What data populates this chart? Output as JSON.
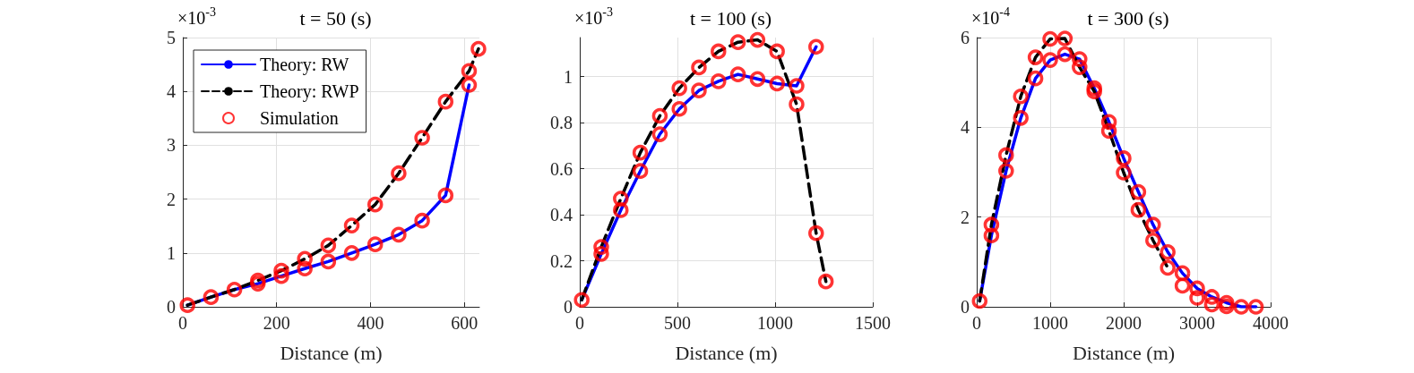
{
  "chart_data": [
    {
      "type": "line",
      "title": "t = 50 (s)",
      "xlabel": "Distance (m)",
      "annotations": [
        "×10$^{-3}$"
      ],
      "xlim": [
        0,
        632
      ],
      "xticks": [
        0,
        200,
        400,
        600
      ],
      "ylim": [
        0,
        5
      ],
      "yticks": [
        0,
        1,
        2,
        3,
        4,
        5
      ],
      "grid": true,
      "legend": "top left",
      "series": [
        {
          "name": "Theory: RW",
          "type": "line",
          "color": "#0000ff",
          "line_style": "solid",
          "marker": "none",
          "x": [
            10,
            60,
            110,
            160,
            210,
            260,
            310,
            360,
            410,
            460,
            510,
            560,
            610
          ],
          "values": [
            0.03,
            0.18,
            0.32,
            0.43,
            0.57,
            0.71,
            0.84,
            1.0,
            1.16,
            1.34,
            1.6,
            2.07,
            4.12
          ]
        },
        {
          "name": "Theory: RWP",
          "type": "line",
          "color": "#000000",
          "line_style": "dashed",
          "marker": "none",
          "x": [
            10,
            60,
            110,
            160,
            210,
            260,
            310,
            360,
            410,
            460,
            510,
            560,
            610,
            630
          ],
          "values": [
            0.03,
            0.18,
            0.32,
            0.49,
            0.67,
            0.89,
            1.14,
            1.51,
            1.9,
            2.48,
            3.14,
            3.81,
            4.38,
            4.79
          ]
        },
        {
          "name": "Simulation",
          "type": "scatter",
          "color": "#ff0000",
          "marker": "circle",
          "x": [
            10,
            60,
            110,
            160,
            160,
            210,
            210,
            260,
            260,
            310,
            310,
            360,
            360,
            410,
            410,
            460,
            460,
            510,
            510,
            560,
            560,
            610,
            610,
            630
          ],
          "values": [
            0.03,
            0.18,
            0.32,
            0.49,
            0.43,
            0.67,
            0.57,
            0.89,
            0.71,
            1.14,
            0.84,
            1.51,
            1.0,
            1.9,
            1.16,
            2.48,
            1.34,
            3.14,
            1.6,
            3.81,
            2.07,
            4.38,
            4.12,
            4.79
          ]
        }
      ]
    },
    {
      "type": "line",
      "title": "t = 100 (s)",
      "xlabel": "Distance (m)",
      "annotations": [
        "×10$^{-3}$"
      ],
      "xlim": [
        0,
        1500
      ],
      "xticks": [
        0,
        500,
        1000,
        1500
      ],
      "ylim": [
        0,
        1.17
      ],
      "yticks": [
        0,
        0.2,
        0.4,
        0.6,
        0.8,
        1
      ],
      "grid": true,
      "series": [
        {
          "type": "line",
          "color": "#0000ff",
          "line_style": "solid",
          "marker": "none",
          "x": [
            10,
            110,
            210,
            310,
            410,
            510,
            610,
            710,
            810,
            910,
            1010,
            1110,
            1210
          ],
          "values": [
            0.03,
            0.23,
            0.42,
            0.59,
            0.75,
            0.86,
            0.94,
            0.98,
            1.01,
            0.99,
            0.97,
            0.96,
            1.13
          ]
        },
        {
          "type": "line",
          "color": "#000000",
          "line_style": "dashed",
          "marker": "none",
          "x": [
            10,
            110,
            210,
            310,
            410,
            510,
            610,
            710,
            810,
            910,
            1010,
            1110,
            1210,
            1260
          ],
          "values": [
            0.03,
            0.26,
            0.47,
            0.67,
            0.83,
            0.95,
            1.04,
            1.11,
            1.15,
            1.16,
            1.11,
            0.88,
            0.32,
            0.11
          ]
        },
        {
          "type": "scatter",
          "color": "#ff0000",
          "marker": "circle",
          "x": [
            10,
            110,
            110,
            210,
            210,
            310,
            310,
            410,
            410,
            510,
            510,
            610,
            610,
            710,
            710,
            810,
            810,
            910,
            910,
            1010,
            1010,
            1110,
            1110,
            1210,
            1210,
            1260
          ],
          "values": [
            0.03,
            0.23,
            0.26,
            0.42,
            0.47,
            0.59,
            0.67,
            0.75,
            0.83,
            0.86,
            0.95,
            0.94,
            1.04,
            0.98,
            1.11,
            1.01,
            1.15,
            0.99,
            1.16,
            0.97,
            1.11,
            0.96,
            0.88,
            1.13,
            0.32,
            0.11
          ]
        }
      ]
    },
    {
      "type": "line",
      "title": "t = 300 (s)",
      "xlabel": "Distance (m)",
      "annotations": [
        "×10$^{-4}$"
      ],
      "xlim": [
        0,
        4000
      ],
      "xticks": [
        0,
        1000,
        2000,
        3000,
        4000
      ],
      "ylim": [
        0,
        6
      ],
      "yticks": [
        0,
        2,
        4,
        6
      ],
      "grid": true,
      "series": [
        {
          "type": "line",
          "color": "#0000ff",
          "line_style": "solid",
          "marker": "none",
          "x": [
            40,
            200,
            400,
            600,
            800,
            1000,
            1200,
            1400,
            1600,
            1800,
            2000,
            2200,
            2400,
            2600,
            2800,
            3000,
            3200,
            3400,
            3600,
            3800
          ],
          "values": [
            0.13,
            1.59,
            3.03,
            4.21,
            5.09,
            5.5,
            5.63,
            5.52,
            4.87,
            4.12,
            3.31,
            2.56,
            1.83,
            1.22,
            0.75,
            0.41,
            0.22,
            0.09,
            0,
            0
          ]
        },
        {
          "type": "line",
          "color": "#000000",
          "line_style": "dashed",
          "marker": "none",
          "x": [
            40,
            200,
            400,
            600,
            800,
            1000,
            1200,
            1400,
            1600,
            1800,
            2000,
            2200,
            2400,
            2600
          ],
          "values": [
            0.13,
            1.83,
            3.38,
            4.69,
            5.56,
            5.97,
            5.98,
            5.34,
            4.8,
            3.92,
            2.99,
            2.16,
            1.48,
            0.87
          ]
        },
        {
          "type": "scatter",
          "color": "#ff0000",
          "marker": "circle",
          "x": [
            40,
            200,
            200,
            400,
            400,
            600,
            600,
            800,
            800,
            1000,
            1000,
            1200,
            1200,
            1400,
            1400,
            1600,
            1600,
            1800,
            1800,
            2000,
            2000,
            2200,
            2200,
            2400,
            2400,
            2600,
            2600,
            2800,
            2800,
            3000,
            3000,
            3200,
            3200,
            3400,
            3400,
            3600,
            3800
          ],
          "values": [
            0.13,
            1.59,
            1.83,
            3.03,
            3.38,
            4.21,
            4.69,
            5.09,
            5.56,
            5.5,
            5.97,
            5.63,
            5.98,
            5.52,
            5.34,
            4.87,
            4.8,
            4.12,
            3.92,
            3.31,
            2.99,
            2.56,
            2.16,
            1.83,
            1.48,
            1.22,
            0.87,
            0.75,
            0.47,
            0.41,
            0.2,
            0.22,
            0.05,
            0.09,
            0.01,
            0,
            0
          ]
        }
      ]
    }
  ]
}
